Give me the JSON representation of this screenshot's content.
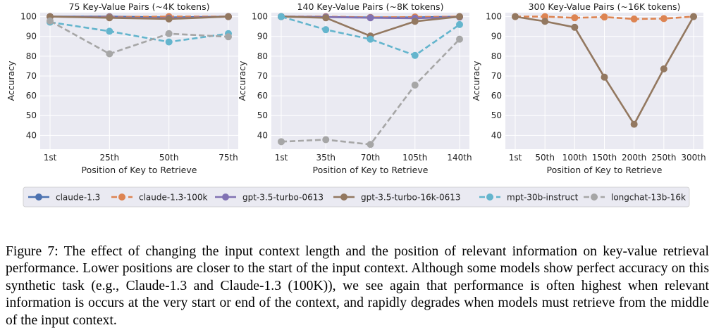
{
  "chart_data": [
    {
      "type": "line",
      "title": "75 Key-Value Pairs (~4K tokens)",
      "xlabel": "Position of Key to Retrieve",
      "ylabel": "Accuracy",
      "categories": [
        "1st",
        "25th",
        "50th",
        "75th"
      ],
      "ylim": [
        33,
        102
      ],
      "yticks": [
        40,
        50,
        60,
        70,
        80,
        90,
        100
      ],
      "grid": true,
      "series": [
        {
          "name": "claude-1.3",
          "values": [
            100,
            100,
            99.6,
            100
          ]
        },
        {
          "name": "claude-1.3-100k",
          "values": [
            100,
            99.8,
            100,
            100
          ]
        },
        {
          "name": "gpt-3.5-turbo-0613",
          "values": [
            100,
            99.6,
            99.2,
            100
          ]
        },
        {
          "name": "gpt-3.5-turbo-16k-0613",
          "values": [
            100,
            99.4,
            98.8,
            100
          ]
        },
        {
          "name": "mpt-30b-instruct",
          "values": [
            97.2,
            92.6,
            87.2,
            91.4
          ]
        },
        {
          "name": "longchat-13b-16k",
          "values": [
            97.8,
            81.2,
            91.4,
            89.8
          ]
        }
      ]
    },
    {
      "type": "line",
      "title": "140 Key-Value Pairs (~8K tokens)",
      "xlabel": "Position of Key to Retrieve",
      "ylabel": "Accuracy",
      "categories": [
        "1st",
        "35th",
        "70th",
        "105th",
        "140th"
      ],
      "ylim": [
        33,
        102
      ],
      "yticks": [
        40,
        50,
        60,
        70,
        80,
        90,
        100
      ],
      "grid": true,
      "series": [
        {
          "name": "claude-1.3",
          "values": [
            100,
            99.8,
            99.6,
            99.6,
            100
          ]
        },
        {
          "name": "claude-1.3-100k",
          "values": [
            100,
            100,
            99.6,
            99.8,
            100
          ]
        },
        {
          "name": "gpt-3.5-turbo-0613",
          "values": [
            100,
            99.8,
            99.4,
            99.2,
            99.8
          ]
        },
        {
          "name": "gpt-3.5-turbo-16k-0613",
          "values": [
            100,
            99.4,
            90.2,
            97.6,
            100
          ]
        },
        {
          "name": "mpt-30b-instruct",
          "values": [
            100,
            93.4,
            88.6,
            80.4,
            96
          ]
        },
        {
          "name": "longchat-13b-16k",
          "values": [
            36.8,
            37.8,
            35.4,
            65.4,
            88.6
          ]
        }
      ]
    },
    {
      "type": "line",
      "title": "300 Key-Value Pairs (~16K tokens)",
      "xlabel": "Position of Key to Retrieve",
      "ylabel": "Accuracy",
      "categories": [
        "1st",
        "50th",
        "100th",
        "150th",
        "200th",
        "250th",
        "300th"
      ],
      "ylim": [
        33,
        102
      ],
      "yticks": [
        40,
        50,
        60,
        70,
        80,
        90,
        100
      ],
      "grid": true,
      "series": [
        {
          "name": "claude-1.3-100k",
          "values": [
            100,
            100,
            99.4,
            99.8,
            98.8,
            99,
            100
          ]
        },
        {
          "name": "gpt-3.5-turbo-16k-0613",
          "values": [
            100,
            97.6,
            94.6,
            69.4,
            45.6,
            73.6,
            100
          ]
        }
      ]
    }
  ],
  "legend": {
    "entries": [
      {
        "name": "claude-1.3",
        "color": "#4c72b0",
        "dashed": false
      },
      {
        "name": "claude-1.3-100k",
        "color": "#dd8452",
        "dashed": true
      },
      {
        "name": "gpt-3.5-turbo-0613",
        "color": "#8172b3",
        "dashed": false
      },
      {
        "name": "gpt-3.5-turbo-16k-0613",
        "color": "#937860",
        "dashed": false
      },
      {
        "name": "mpt-30b-instruct",
        "color": "#64b5cd",
        "dashed": true
      },
      {
        "name": "longchat-13b-16k",
        "color": "#a6a6a6",
        "dashed": true
      }
    ]
  },
  "caption": "Figure 7: The effect of changing the input context length and the position of relevant information on key-value retrieval performance. Lower positions are closer to the start of the input context. Although some models show perfect accuracy on this synthetic task (e.g., Claude-1.3 and Claude-1.3 (100K)), we see again that performance is often highest when relevant information is occurs at the very start or end of the context, and rapidly degrades when models must retrieve from the middle of the input context."
}
